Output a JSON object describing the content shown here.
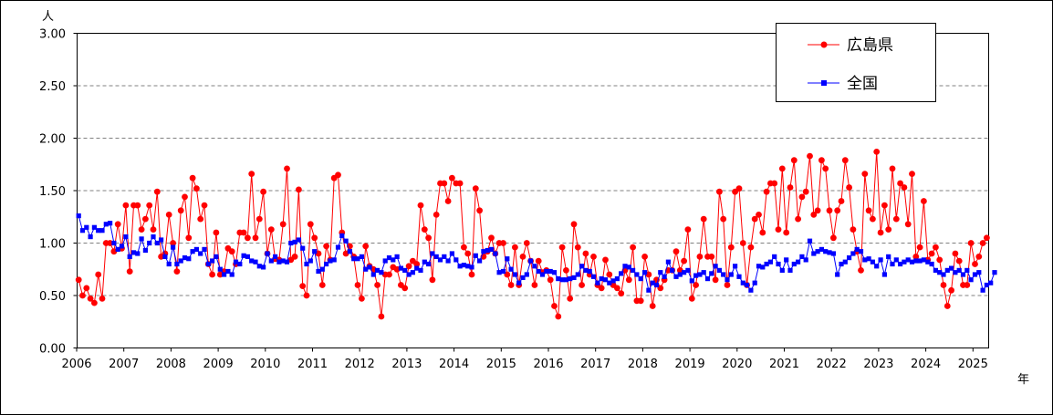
{
  "chart_data": {
    "type": "line",
    "ylabel": "人",
    "xlabel": "年",
    "ylim": [
      0,
      3.0
    ],
    "yticks": [
      "0.00",
      "0.50",
      "1.00",
      "1.50",
      "2.00",
      "2.50",
      "3.00"
    ],
    "xticks": [
      "2006",
      "2007",
      "2008",
      "2009",
      "2010",
      "2011",
      "2012",
      "2013",
      "2014",
      "2015",
      "2016",
      "2017",
      "2018",
      "2019",
      "2020",
      "2021",
      "2022",
      "2023",
      "2024",
      "2025"
    ],
    "x_start": "2006-01",
    "grid": "horizontal dashed",
    "legend_position": "top-right",
    "series": [
      {
        "name": "広島県",
        "color": "#ff0000",
        "marker": "circle",
        "values": [
          0.65,
          0.5,
          0.57,
          0.47,
          0.43,
          0.7,
          0.47,
          1.0,
          1.0,
          0.92,
          1.18,
          0.95,
          1.36,
          0.73,
          1.36,
          1.36,
          1.13,
          1.23,
          1.36,
          1.13,
          1.49,
          0.87,
          0.9,
          1.27,
          1.0,
          0.73,
          1.31,
          1.44,
          1.05,
          1.62,
          1.52,
          1.23,
          1.36,
          0.8,
          0.7,
          1.1,
          0.7,
          0.73,
          0.95,
          0.92,
          0.8,
          1.1,
          1.1,
          1.05,
          1.66,
          1.05,
          1.23,
          1.49,
          0.9,
          1.13,
          0.85,
          0.84,
          1.18,
          1.71,
          0.84,
          0.87,
          1.51,
          0.59,
          0.5,
          1.18,
          1.05,
          0.9,
          0.6,
          0.97,
          0.84,
          1.62,
          1.65,
          1.1,
          0.9,
          0.97,
          0.87,
          0.6,
          0.47,
          0.97,
          0.78,
          0.75,
          0.6,
          0.3,
          0.7,
          0.7,
          0.77,
          0.75,
          0.6,
          0.57,
          0.78,
          0.83,
          0.8,
          1.36,
          1.13,
          1.05,
          0.65,
          1.27,
          1.57,
          1.57,
          1.4,
          1.62,
          1.57,
          1.57,
          0.96,
          0.9,
          0.7,
          1.52,
          1.31,
          0.87,
          0.92,
          1.05,
          0.9,
          1.0,
          1.0,
          0.7,
          0.6,
          0.96,
          0.6,
          0.87,
          1.0,
          0.83,
          0.6,
          0.83,
          0.72,
          0.74,
          0.65,
          0.4,
          0.3,
          0.96,
          0.74,
          0.47,
          1.18,
          0.96,
          0.6,
          0.9,
          0.7,
          0.87,
          0.6,
          0.57,
          0.84,
          0.7,
          0.6,
          0.57,
          0.52,
          0.74,
          0.65,
          0.96,
          0.45,
          0.45,
          0.87,
          0.7,
          0.4,
          0.65,
          0.57,
          0.65,
          0.74,
          0.74,
          0.92,
          0.74,
          0.83,
          1.13,
          0.47,
          0.6,
          0.87,
          1.23,
          0.87,
          0.87,
          0.65,
          1.49,
          1.23,
          0.6,
          0.96,
          1.49,
          1.52,
          1.0,
          0.6,
          0.96,
          1.23,
          1.27,
          1.1,
          1.49,
          1.57,
          1.57,
          1.13,
          1.71,
          1.1,
          1.53,
          1.79,
          1.23,
          1.44,
          1.49,
          1.83,
          1.27,
          1.31,
          1.79,
          1.71,
          1.31,
          1.05,
          1.31,
          1.4,
          1.79,
          1.53,
          1.13,
          0.92,
          0.74,
          1.66,
          1.31,
          1.23,
          1.87,
          1.1,
          1.36,
          1.13,
          1.71,
          1.23,
          1.57,
          1.53,
          1.18,
          1.66,
          0.87,
          0.96,
          1.4,
          0.84,
          0.9,
          0.96,
          0.84,
          0.6,
          0.4,
          0.55,
          0.9,
          0.83,
          0.6,
          0.6,
          1.0,
          0.8,
          0.87,
          1.0,
          1.05
        ]
      },
      {
        "name": "全国",
        "color": "#0000ff",
        "marker": "square",
        "values": [
          1.26,
          1.12,
          1.15,
          1.06,
          1.15,
          1.12,
          1.12,
          1.18,
          1.19,
          1.0,
          0.94,
          0.97,
          1.06,
          0.87,
          0.91,
          0.9,
          1.04,
          0.93,
          1.0,
          1.06,
          1.0,
          1.03,
          0.87,
          0.8,
          0.96,
          0.8,
          0.83,
          0.86,
          0.85,
          0.92,
          0.94,
          0.9,
          0.94,
          0.8,
          0.83,
          0.87,
          0.75,
          0.7,
          0.73,
          0.7,
          0.82,
          0.8,
          0.88,
          0.87,
          0.83,
          0.82,
          0.78,
          0.77,
          0.9,
          0.83,
          0.87,
          0.82,
          0.83,
          0.82,
          1.0,
          1.01,
          1.03,
          0.95,
          0.8,
          0.83,
          0.92,
          0.73,
          0.75,
          0.8,
          0.83,
          0.84,
          0.96,
          1.07,
          1.02,
          0.92,
          0.85,
          0.85,
          0.87,
          0.75,
          0.77,
          0.7,
          0.74,
          0.72,
          0.83,
          0.86,
          0.84,
          0.87,
          0.76,
          0.74,
          0.7,
          0.72,
          0.76,
          0.74,
          0.82,
          0.8,
          0.9,
          0.87,
          0.84,
          0.87,
          0.83,
          0.9,
          0.84,
          0.78,
          0.79,
          0.78,
          0.77,
          0.88,
          0.83,
          0.92,
          0.93,
          0.94,
          0.9,
          0.72,
          0.73,
          0.85,
          0.75,
          0.7,
          0.62,
          0.67,
          0.7,
          0.83,
          0.78,
          0.73,
          0.7,
          0.73,
          0.73,
          0.72,
          0.66,
          0.65,
          0.65,
          0.66,
          0.67,
          0.7,
          0.78,
          0.74,
          0.73,
          0.68,
          0.62,
          0.66,
          0.65,
          0.62,
          0.64,
          0.66,
          0.71,
          0.78,
          0.77,
          0.74,
          0.7,
          0.66,
          0.72,
          0.55,
          0.62,
          0.6,
          0.72,
          0.68,
          0.82,
          0.74,
          0.68,
          0.7,
          0.72,
          0.74,
          0.64,
          0.69,
          0.7,
          0.72,
          0.66,
          0.71,
          0.78,
          0.74,
          0.7,
          0.65,
          0.7,
          0.78,
          0.68,
          0.62,
          0.6,
          0.55,
          0.62,
          0.78,
          0.77,
          0.8,
          0.82,
          0.87,
          0.8,
          0.74,
          0.84,
          0.74,
          0.8,
          0.82,
          0.87,
          0.84,
          1.02,
          0.9,
          0.92,
          0.94,
          0.92,
          0.91,
          0.9,
          0.7,
          0.8,
          0.82,
          0.86,
          0.9,
          0.94,
          0.92,
          0.84,
          0.85,
          0.82,
          0.78,
          0.84,
          0.7,
          0.87,
          0.8,
          0.84,
          0.8,
          0.82,
          0.84,
          0.82,
          0.83,
          0.83,
          0.84,
          0.82,
          0.8,
          0.74,
          0.72,
          0.7,
          0.74,
          0.76,
          0.72,
          0.74,
          0.7,
          0.74,
          0.65,
          0.7,
          0.72,
          0.55,
          0.6,
          0.62,
          0.72
        ]
      }
    ]
  }
}
